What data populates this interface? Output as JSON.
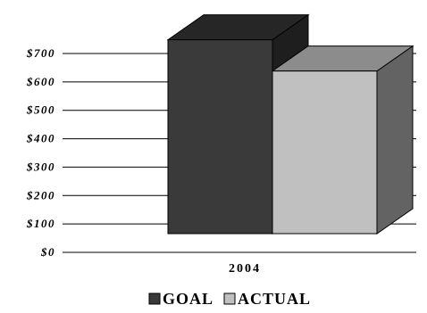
{
  "chart_data": {
    "type": "bar",
    "style": "3d-clustered-column",
    "categories": [
      "2004"
    ],
    "series": [
      {
        "name": "GOAL",
        "values": [
          700
        ],
        "color": "#3a3a3a"
      },
      {
        "name": "ACTUAL",
        "values": [
          590
        ],
        "color": "#c0c0c0"
      }
    ],
    "y_ticks": [
      "$0",
      "$100",
      "$200",
      "$300",
      "$400",
      "$500",
      "$600",
      "$700"
    ],
    "ylim": [
      0,
      700
    ],
    "grid": "horizontal",
    "legend_position": "bottom",
    "colors": {
      "goal_front": "#3a3a3a",
      "goal_top": "#262626",
      "goal_side": "#1e1e1e",
      "actual_front": "#c0c0c0",
      "actual_top": "#8c8c8c",
      "actual_side": "#636363",
      "grid": "#000000"
    }
  }
}
